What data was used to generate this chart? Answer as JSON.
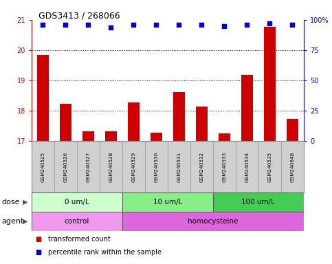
{
  "title": "GDS3413 / 268066",
  "samples": [
    "GSM240525",
    "GSM240526",
    "GSM240527",
    "GSM240528",
    "GSM240529",
    "GSM240530",
    "GSM240531",
    "GSM240532",
    "GSM240533",
    "GSM240534",
    "GSM240535",
    "GSM240848"
  ],
  "bar_values": [
    19.85,
    18.22,
    17.32,
    17.33,
    18.27,
    17.27,
    18.62,
    18.14,
    17.25,
    19.18,
    20.78,
    17.73
  ],
  "dot_values": [
    96,
    96,
    96,
    94,
    96,
    96,
    96,
    96,
    95,
    96,
    97,
    96
  ],
  "ylim_left": [
    17,
    21
  ],
  "ylim_right": [
    0,
    100
  ],
  "yticks_left": [
    17,
    18,
    19,
    20,
    21
  ],
  "yticks_right": [
    0,
    25,
    50,
    75,
    100
  ],
  "ytick_labels_right": [
    "0",
    "25",
    "50",
    "75",
    "100%"
  ],
  "bar_color": "#cc0000",
  "dot_color": "#0000cc",
  "dose_groups": [
    {
      "label": "0 um/L",
      "start": 0,
      "end": 4,
      "color": "#ccffcc"
    },
    {
      "label": "10 um/L",
      "start": 4,
      "end": 8,
      "color": "#88ee88"
    },
    {
      "label": "100 um/L",
      "start": 8,
      "end": 12,
      "color": "#44cc55"
    }
  ],
  "agent_groups": [
    {
      "label": "control",
      "start": 0,
      "end": 4,
      "color": "#ee99ee"
    },
    {
      "label": "homocysteine",
      "start": 4,
      "end": 12,
      "color": "#dd66dd"
    }
  ],
  "dose_label": "dose",
  "agent_label": "agent",
  "legend_items": [
    {
      "label": "transformed count",
      "color": "#cc0000"
    },
    {
      "label": "percentile rank within the sample",
      "color": "#0000cc"
    }
  ],
  "bg_color": "#ffffff",
  "sample_col_color": "#d0d0d0",
  "grid_yticks": [
    18,
    19,
    20
  ]
}
